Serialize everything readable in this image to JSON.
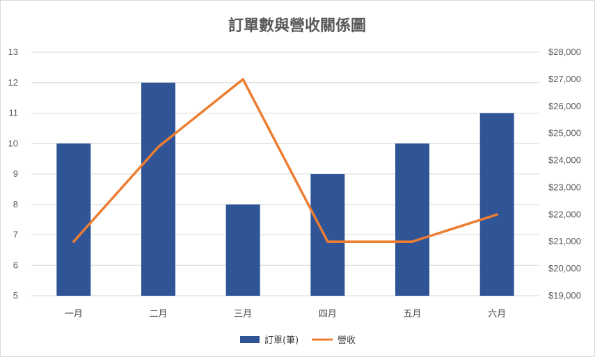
{
  "chart_data": {
    "type": "bar",
    "title": "訂單數與營收關係圖",
    "categories": [
      "一月",
      "二月",
      "三月",
      "四月",
      "五月",
      "六月"
    ],
    "series": [
      {
        "name": "訂單(筆)",
        "type": "bar",
        "axis": "left",
        "color": "#2f5597",
        "values": [
          10,
          12,
          8,
          9,
          10,
          11
        ]
      },
      {
        "name": "營收",
        "type": "line",
        "axis": "right",
        "color": "#ed7d31",
        "values": [
          21000,
          24500,
          27000,
          21000,
          21000,
          22000
        ]
      }
    ],
    "y_left": {
      "min": 5,
      "max": 13,
      "step": 1,
      "ticks": [
        "5",
        "6",
        "7",
        "8",
        "9",
        "10",
        "11",
        "12",
        "13"
      ]
    },
    "y_right": {
      "min": 19000,
      "max": 28000,
      "step": 1000,
      "ticks": [
        "$19,000",
        "$20,000",
        "$21,000",
        "$22,000",
        "$23,000",
        "$24,000",
        "$25,000",
        "$26,000",
        "$27,000",
        "$28,000"
      ]
    },
    "grid": true,
    "legend_position": "bottom"
  }
}
